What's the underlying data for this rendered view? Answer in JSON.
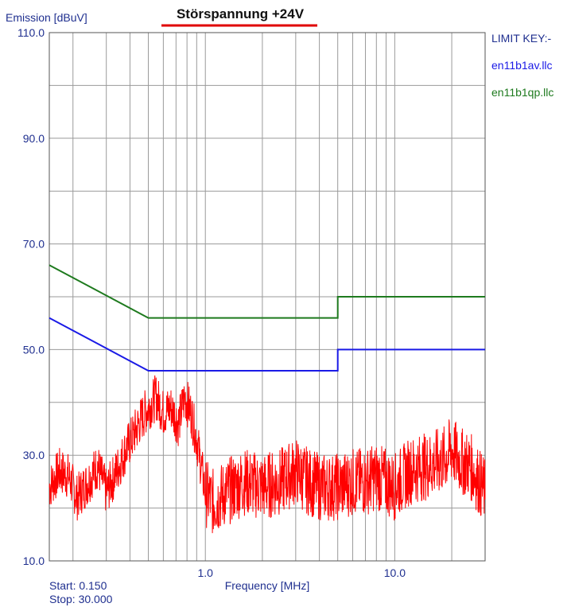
{
  "chart_data": {
    "type": "line",
    "title": "Störspannung +24V",
    "ylabel": "Emission [dBuV]",
    "xlabel": "Frequency [MHz]",
    "x_scale": "log",
    "xlim": [
      0.15,
      30.0
    ],
    "ylim": [
      10.0,
      110.0
    ],
    "y_ticks": [
      "110.0",
      "90.0",
      "70.0",
      "50.0",
      "30.0",
      "10.0"
    ],
    "x_ticks": [
      "1.0",
      "10.0"
    ],
    "start_label": "Start: 0.150",
    "stop_label": "Stop: 30.000",
    "legend": {
      "title": "LIMIT KEY:-",
      "placement": "right",
      "entries": [
        {
          "label": "en11b1av.llc",
          "color": "#1a1ae6"
        },
        {
          "label": "en11b1qp.llc",
          "color": "#1e7a1e"
        }
      ]
    },
    "grid": true,
    "series": [
      {
        "name": "en11b1qp.llc",
        "color": "#1e7a1e",
        "x": [
          0.15,
          0.5,
          5.0,
          5.0,
          30.0
        ],
        "y": [
          66.0,
          56.0,
          56.0,
          60.0,
          60.0
        ]
      },
      {
        "name": "en11b1av.llc",
        "color": "#1a1ae6",
        "x": [
          0.15,
          0.5,
          5.0,
          5.0,
          30.0
        ],
        "y": [
          56.0,
          46.0,
          46.0,
          50.0,
          50.0
        ]
      },
      {
        "color": "#ff0000",
        "x": [
          0.15,
          0.17,
          0.19,
          0.21,
          0.24,
          0.27,
          0.3,
          0.34,
          0.38,
          0.42,
          0.46,
          0.5,
          0.55,
          0.6,
          0.66,
          0.72,
          0.78,
          0.84,
          0.9,
          0.95,
          1.0,
          1.1,
          1.3,
          1.6,
          2.0,
          2.5,
          3.0,
          3.5,
          4.0,
          5.0,
          6.0,
          7.0,
          8.0,
          10.0,
          12.0,
          15.0,
          18.0,
          20.0,
          22.0,
          25.0,
          30.0
        ],
        "y": [
          24,
          27,
          26,
          22,
          25,
          28,
          23,
          27,
          31,
          34,
          37,
          39,
          41,
          38,
          39,
          36,
          41,
          38,
          33,
          28,
          23,
          21,
          23,
          25,
          24,
          25,
          27,
          25,
          24,
          24,
          25,
          25,
          26,
          24,
          27,
          28,
          29,
          31,
          29,
          28,
          23
        ]
      }
    ]
  }
}
